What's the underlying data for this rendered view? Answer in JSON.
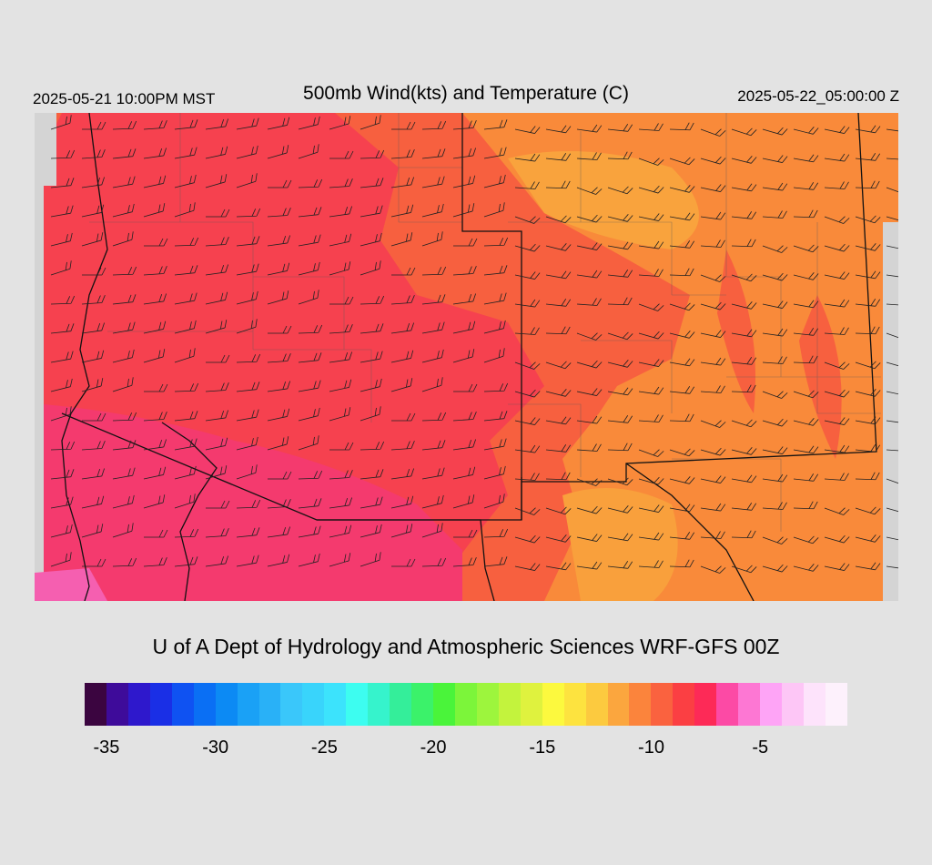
{
  "header": {
    "valid_local": "2025-05-21 10:00PM MST",
    "title": "500mb Wind(kts) and Temperature (C)",
    "valid_utc": "2025-05-22_05:00:00 Z"
  },
  "footer": {
    "credit": "U of A Dept of Hydrology and Atmospheric Sciences WRF-GFS 00Z"
  },
  "map": {
    "field": "temperature",
    "overlay": "wind barbs",
    "region_colors": {
      "pink_corner": "#f55fb0",
      "magenta_southwest": "#f43a6e",
      "red_west": "#f6414f",
      "red_orange_band": "#f7603f",
      "orange_east": "#f98a3a",
      "light_orange_northcentral": "#f9a33d",
      "border_lines": "#1a1a1a",
      "no_data": "#d4d4d4"
    }
  },
  "colorbar": {
    "colors": [
      "#3b0540",
      "#3e0b9a",
      "#2e18cc",
      "#1a2fe6",
      "#0f52f2",
      "#0a6ff4",
      "#0c8af4",
      "#1aa1f6",
      "#29b1f7",
      "#3ac7fa",
      "#39d4fb",
      "#3ce3fc",
      "#3dfdf0",
      "#36f3cc",
      "#34ee9a",
      "#3bf26a",
      "#4af43a",
      "#7cf53a",
      "#9df53d",
      "#c3f33d",
      "#dff23e",
      "#fcf93e",
      "#fde33f",
      "#fcca3f",
      "#fba63e",
      "#fb843c",
      "#fa623f",
      "#fb3f43",
      "#fd2a57",
      "#fc4aa5",
      "#fd77d3",
      "#fea4f6",
      "#fdc6f6",
      "#fde3fb",
      "#fdf1fc"
    ],
    "ticks": [
      "-35",
      "-30",
      "-25",
      "-20",
      "-15",
      "-10",
      "-5"
    ]
  }
}
